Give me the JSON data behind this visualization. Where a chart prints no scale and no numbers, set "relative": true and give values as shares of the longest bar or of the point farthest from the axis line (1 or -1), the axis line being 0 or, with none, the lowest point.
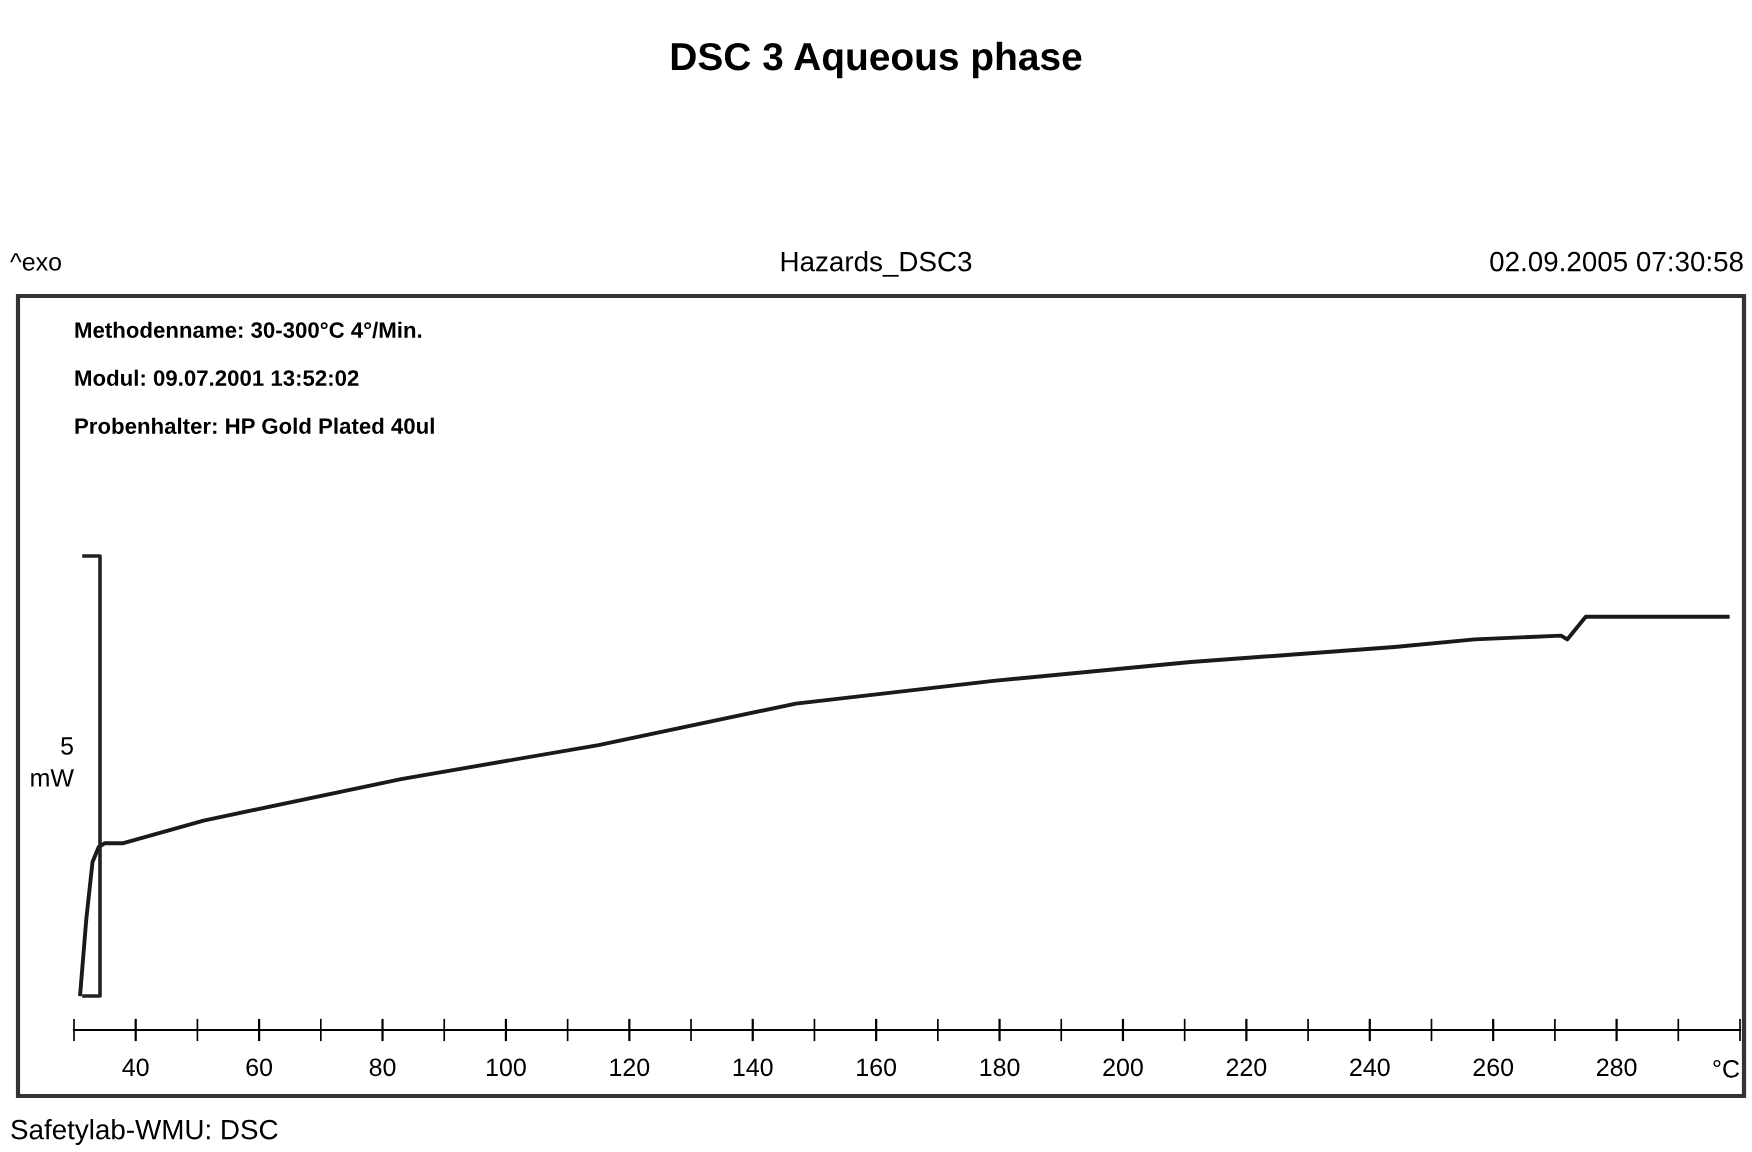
{
  "chart_data": {
    "type": "line",
    "title": "DSC 3 Aqueous phase",
    "xlabel": "°C",
    "relative": true,
    "x": [
      31,
      32,
      33,
      34,
      35,
      38,
      51,
      83,
      115,
      147,
      179,
      211,
      244,
      257,
      271,
      272,
      275,
      298
    ],
    "series": [
      {
        "color": "#1a1a1a",
        "values": [
          0,
          0.2,
          0.35,
          0.39,
          0.4,
          0.4,
          0.46,
          0.57,
          0.66,
          0.77,
          0.83,
          0.88,
          0.92,
          0.94,
          0.95,
          0.94,
          1.0,
          1.0
        ]
      }
    ],
    "xlim": [
      30,
      300
    ],
    "xticks": [
      40,
      60,
      80,
      100,
      120,
      140,
      160,
      180,
      200,
      220,
      240,
      260,
      280
    ],
    "grid": false,
    "legend": false,
    "marker": "none",
    "line_style": "solid",
    "annotations": [
      "^exo",
      "Hazards_DSC3",
      "02.09.2005 07:30:58",
      "Methodenname: 30-300°C 4°/Min.",
      "Modul: 09.07.2001 13:52:02",
      "Probenhalter: HP Gold Plated 40ul",
      "5",
      "mW",
      "Safetylab-WMU: DSC"
    ]
  }
}
